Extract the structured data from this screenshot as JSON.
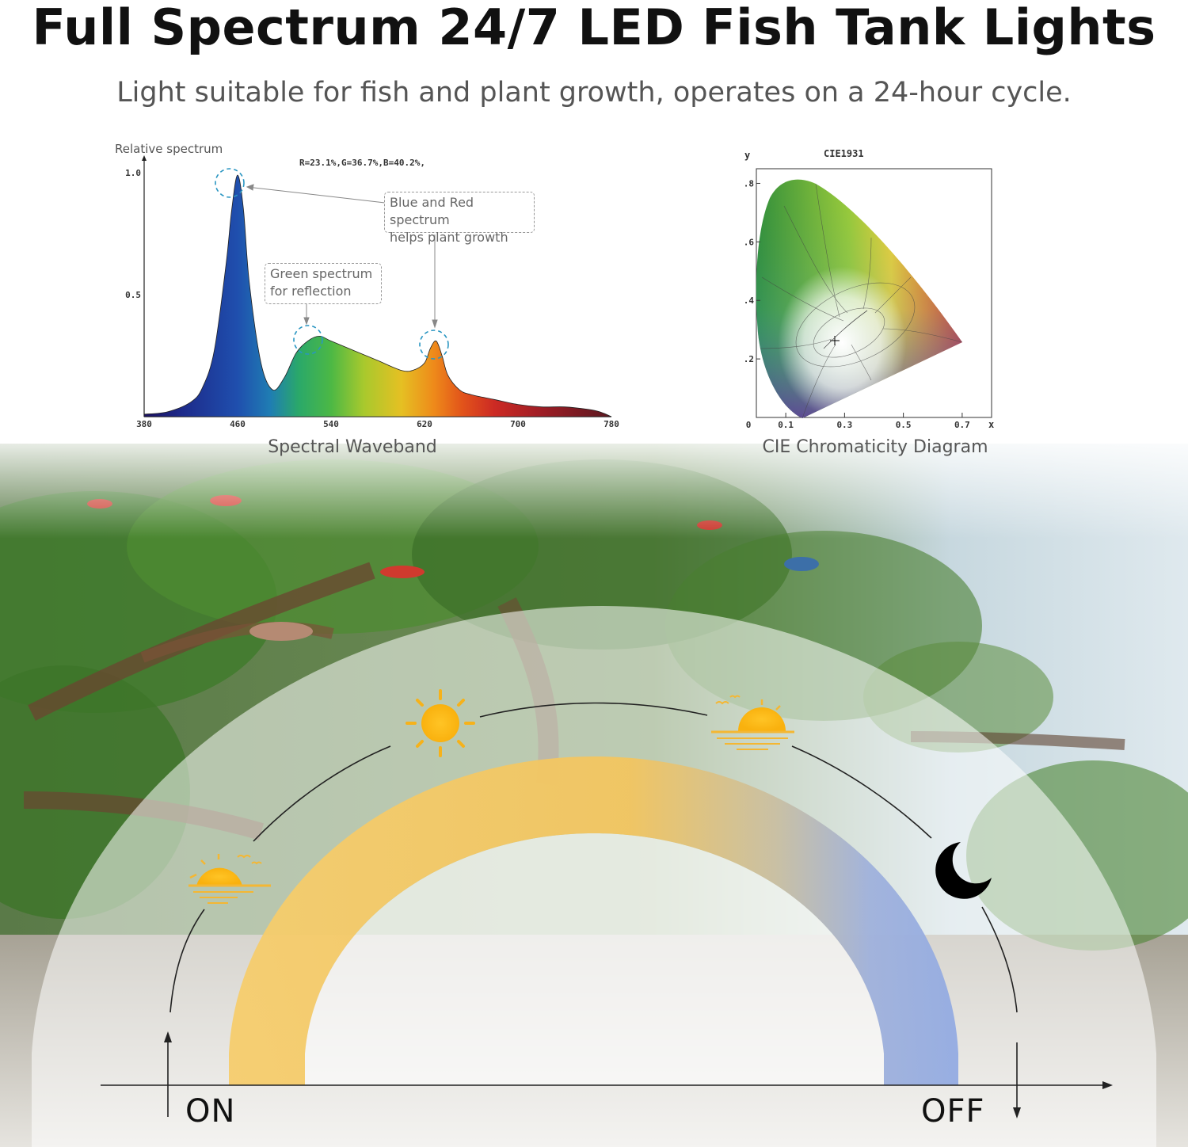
{
  "header": {
    "title": "Full Spectrum 24/7 LED Fish Tank Lights",
    "subtitle": "Light suitable for fish and plant growth, operates on a 24-hour cycle."
  },
  "chart_data": [
    {
      "type": "area",
      "ylabel": "Relative spectrum",
      "annotation": "R=23.1%,G=36.7%,B=40.2%,",
      "caption": "Spectral Waveband",
      "xlim": [
        380,
        780
      ],
      "ylim": [
        0,
        1.0
      ],
      "x_ticks": [
        "380",
        "460",
        "540",
        "620",
        "700",
        "780"
      ],
      "y_ticks": [
        "1.0",
        "0.5"
      ],
      "x": [
        380,
        400,
        420,
        430,
        440,
        450,
        455,
        460,
        465,
        470,
        480,
        490,
        500,
        510,
        520,
        530,
        540,
        560,
        580,
        600,
        610,
        620,
        625,
        630,
        635,
        640,
        650,
        660,
        680,
        700,
        720,
        740,
        760,
        770,
        780
      ],
      "y": [
        0.01,
        0.02,
        0.06,
        0.12,
        0.27,
        0.62,
        0.85,
        0.99,
        0.85,
        0.55,
        0.22,
        0.11,
        0.16,
        0.26,
        0.31,
        0.33,
        0.31,
        0.27,
        0.23,
        0.19,
        0.19,
        0.22,
        0.28,
        0.31,
        0.25,
        0.17,
        0.11,
        0.09,
        0.07,
        0.05,
        0.04,
        0.04,
        0.03,
        0.02,
        0.0
      ],
      "callouts": [
        {
          "text_line1": "Blue and Red spectrum",
          "text_line2": "helps plant growth"
        },
        {
          "text_line1": "Green spectrum",
          "text_line2": "for reflection"
        }
      ]
    },
    {
      "type": "scatter",
      "title": "CIE1931",
      "xlabel": "x",
      "ylabel": "y",
      "caption": "CIE Chromaticity Diagram",
      "x_ticks": [
        "0",
        "0.1",
        "0.3",
        "0.5",
        "0.7"
      ],
      "y_ticks": [
        ".8",
        ".6",
        ".4",
        ".2"
      ]
    }
  ],
  "cycle": {
    "on_label": "ON",
    "off_label": "OFF",
    "icons": [
      "sunrise-icon",
      "sun-icon",
      "sunset-icon",
      "moon-icon"
    ],
    "colors": {
      "day": "#f6c75e",
      "night": "#93abe2"
    }
  }
}
